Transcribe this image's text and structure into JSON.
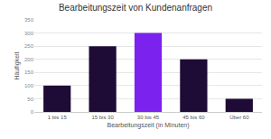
{
  "chart_data": {
    "type": "bar",
    "title": "Bearbeitungszeit von Kundenanfragen",
    "x_label": "Bearbeitungszeit (in Minuten)",
    "y_label": "Häufigkeit",
    "categories": [
      "1 bis 15",
      "15 bis 30",
      "30 bis 45",
      "45 bis 60",
      "Über 60"
    ],
    "values": [
      100,
      250,
      300,
      200,
      50
    ],
    "colors": [
      "#1e0b36",
      "#1e0b36",
      "#7b22ee",
      "#1e0b36",
      "#1e0b36"
    ],
    "ylim": [
      0,
      350
    ],
    "yticks": [
      0,
      50,
      100,
      150,
      200,
      250,
      300,
      350
    ],
    "grid": true
  }
}
